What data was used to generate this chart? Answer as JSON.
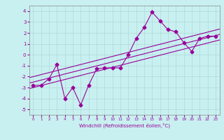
{
  "xlabel": "Windchill (Refroidissement éolien,°C)",
  "x_ticks": [
    0,
    1,
    2,
    3,
    4,
    5,
    6,
    7,
    8,
    9,
    10,
    11,
    12,
    13,
    14,
    15,
    16,
    17,
    18,
    19,
    20,
    21,
    22,
    23
  ],
  "ylim": [
    -5.5,
    4.5
  ],
  "xlim": [
    -0.5,
    23.5
  ],
  "yticks": [
    -5,
    -4,
    -3,
    -2,
    -1,
    0,
    1,
    2,
    3,
    4
  ],
  "scatter_x": [
    0,
    1,
    2,
    3,
    4,
    5,
    6,
    7,
    8,
    9,
    10,
    11,
    12,
    13,
    14,
    15,
    16,
    17,
    18,
    19,
    20,
    21,
    22,
    23
  ],
  "scatter_y": [
    -2.8,
    -2.8,
    -2.2,
    -0.9,
    -4.0,
    -3.0,
    -4.6,
    -2.8,
    -1.3,
    -1.2,
    -1.2,
    -1.2,
    0.0,
    1.5,
    2.5,
    3.9,
    3.1,
    2.3,
    2.1,
    1.1,
    0.3,
    1.5,
    1.7,
    1.7
  ],
  "line1_x": [
    -0.5,
    23.5
  ],
  "line1_y": [
    -2.6,
    1.85
  ],
  "line2_x": [
    -0.5,
    23.5
  ],
  "line2_y": [
    -2.1,
    2.35
  ],
  "line3_x": [
    -0.5,
    23.5
  ],
  "line3_y": [
    -3.1,
    1.35
  ],
  "color": "#990099",
  "bg_color": "#c8f0f0",
  "grid_color": "#b0d8d8",
  "marker": "D",
  "markersize": 2.5,
  "linewidth": 0.8
}
